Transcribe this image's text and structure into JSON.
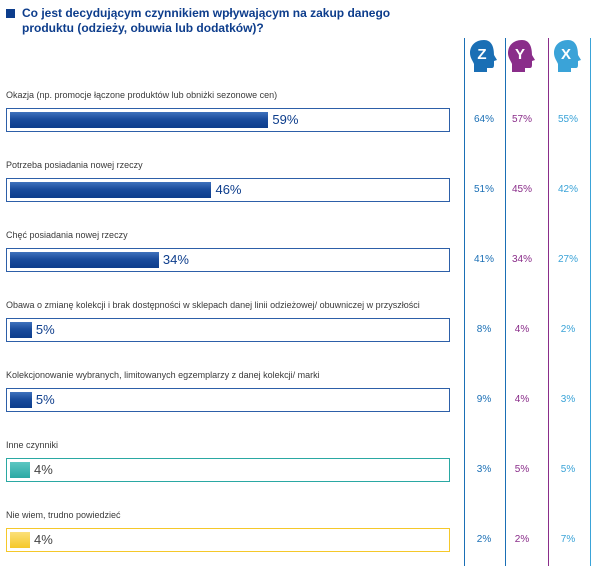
{
  "title": "Co jest decydującym czynnikiem wpływającym na zakup danego produktu (odzieży, obuwia lub dodatków)?",
  "colors": {
    "title": "#0d3d8c",
    "bar_blue": "#0d3d8c",
    "bar_blue_frame": "#2d5fa8",
    "bar_teal": "#2aa8a3",
    "bar_yellow": "#f5c82a",
    "gen_z": "#1a6fb5",
    "gen_y": "#8a2d8a",
    "gen_x": "#3aa3d8"
  },
  "generations": [
    {
      "letter": "Z",
      "color": "#1a6fb5",
      "icon": "head-profile-icon"
    },
    {
      "letter": "Y",
      "color": "#8a2d8a",
      "icon": "head-profile-icon"
    },
    {
      "letter": "X",
      "color": "#3aa3d8",
      "icon": "head-profile-icon"
    }
  ],
  "chart_data": {
    "type": "bar",
    "orientation": "horizontal",
    "title": "Co jest decydującym czynnikiem wpływającym na zakup danego produktu (odzieży, obuwia lub dodatków)?",
    "xlim": [
      0,
      100
    ],
    "categories": [
      "Okazja (np. promocje łączone produktów lub obniżki sezonowe cen)",
      "Potrzeba posiadania nowej rzeczy",
      "Chęć posiadania nowej rzeczy",
      "Obawa o zmianę kolekcji i brak dostępności w sklepach danej linii odzieżowej/ obuwniczej w przyszłości",
      "Kolekcjonowanie wybranych, limitowanych egzemplarzy z danej kolekcji/ marki",
      "Inne czynniki",
      "Nie wiem, trudno powiedzieć"
    ],
    "values": [
      59,
      46,
      34,
      5,
      5,
      4,
      4
    ],
    "value_labels": [
      "59%",
      "46%",
      "34%",
      "5%",
      "5%",
      "4%",
      "4%"
    ],
    "bar_colors": [
      "#0d3d8c",
      "#0d3d8c",
      "#0d3d8c",
      "#0d3d8c",
      "#0d3d8c",
      "#2aa8a3",
      "#f5c82a"
    ],
    "series": [
      {
        "name": "Z",
        "values": [
          64,
          51,
          41,
          8,
          9,
          3,
          2
        ],
        "labels": [
          "64%",
          "51%",
          "41%",
          "8%",
          "9%",
          "3%",
          "2%"
        ]
      },
      {
        "name": "Y",
        "values": [
          57,
          45,
          34,
          4,
          4,
          5,
          2
        ],
        "labels": [
          "57%",
          "45%",
          "34%",
          "4%",
          "4%",
          "5%",
          "2%"
        ]
      },
      {
        "name": "X",
        "values": [
          55,
          42,
          27,
          2,
          3,
          5,
          7
        ],
        "labels": [
          "55%",
          "42%",
          "27%",
          "2%",
          "3%",
          "5%",
          "7%"
        ]
      }
    ]
  }
}
